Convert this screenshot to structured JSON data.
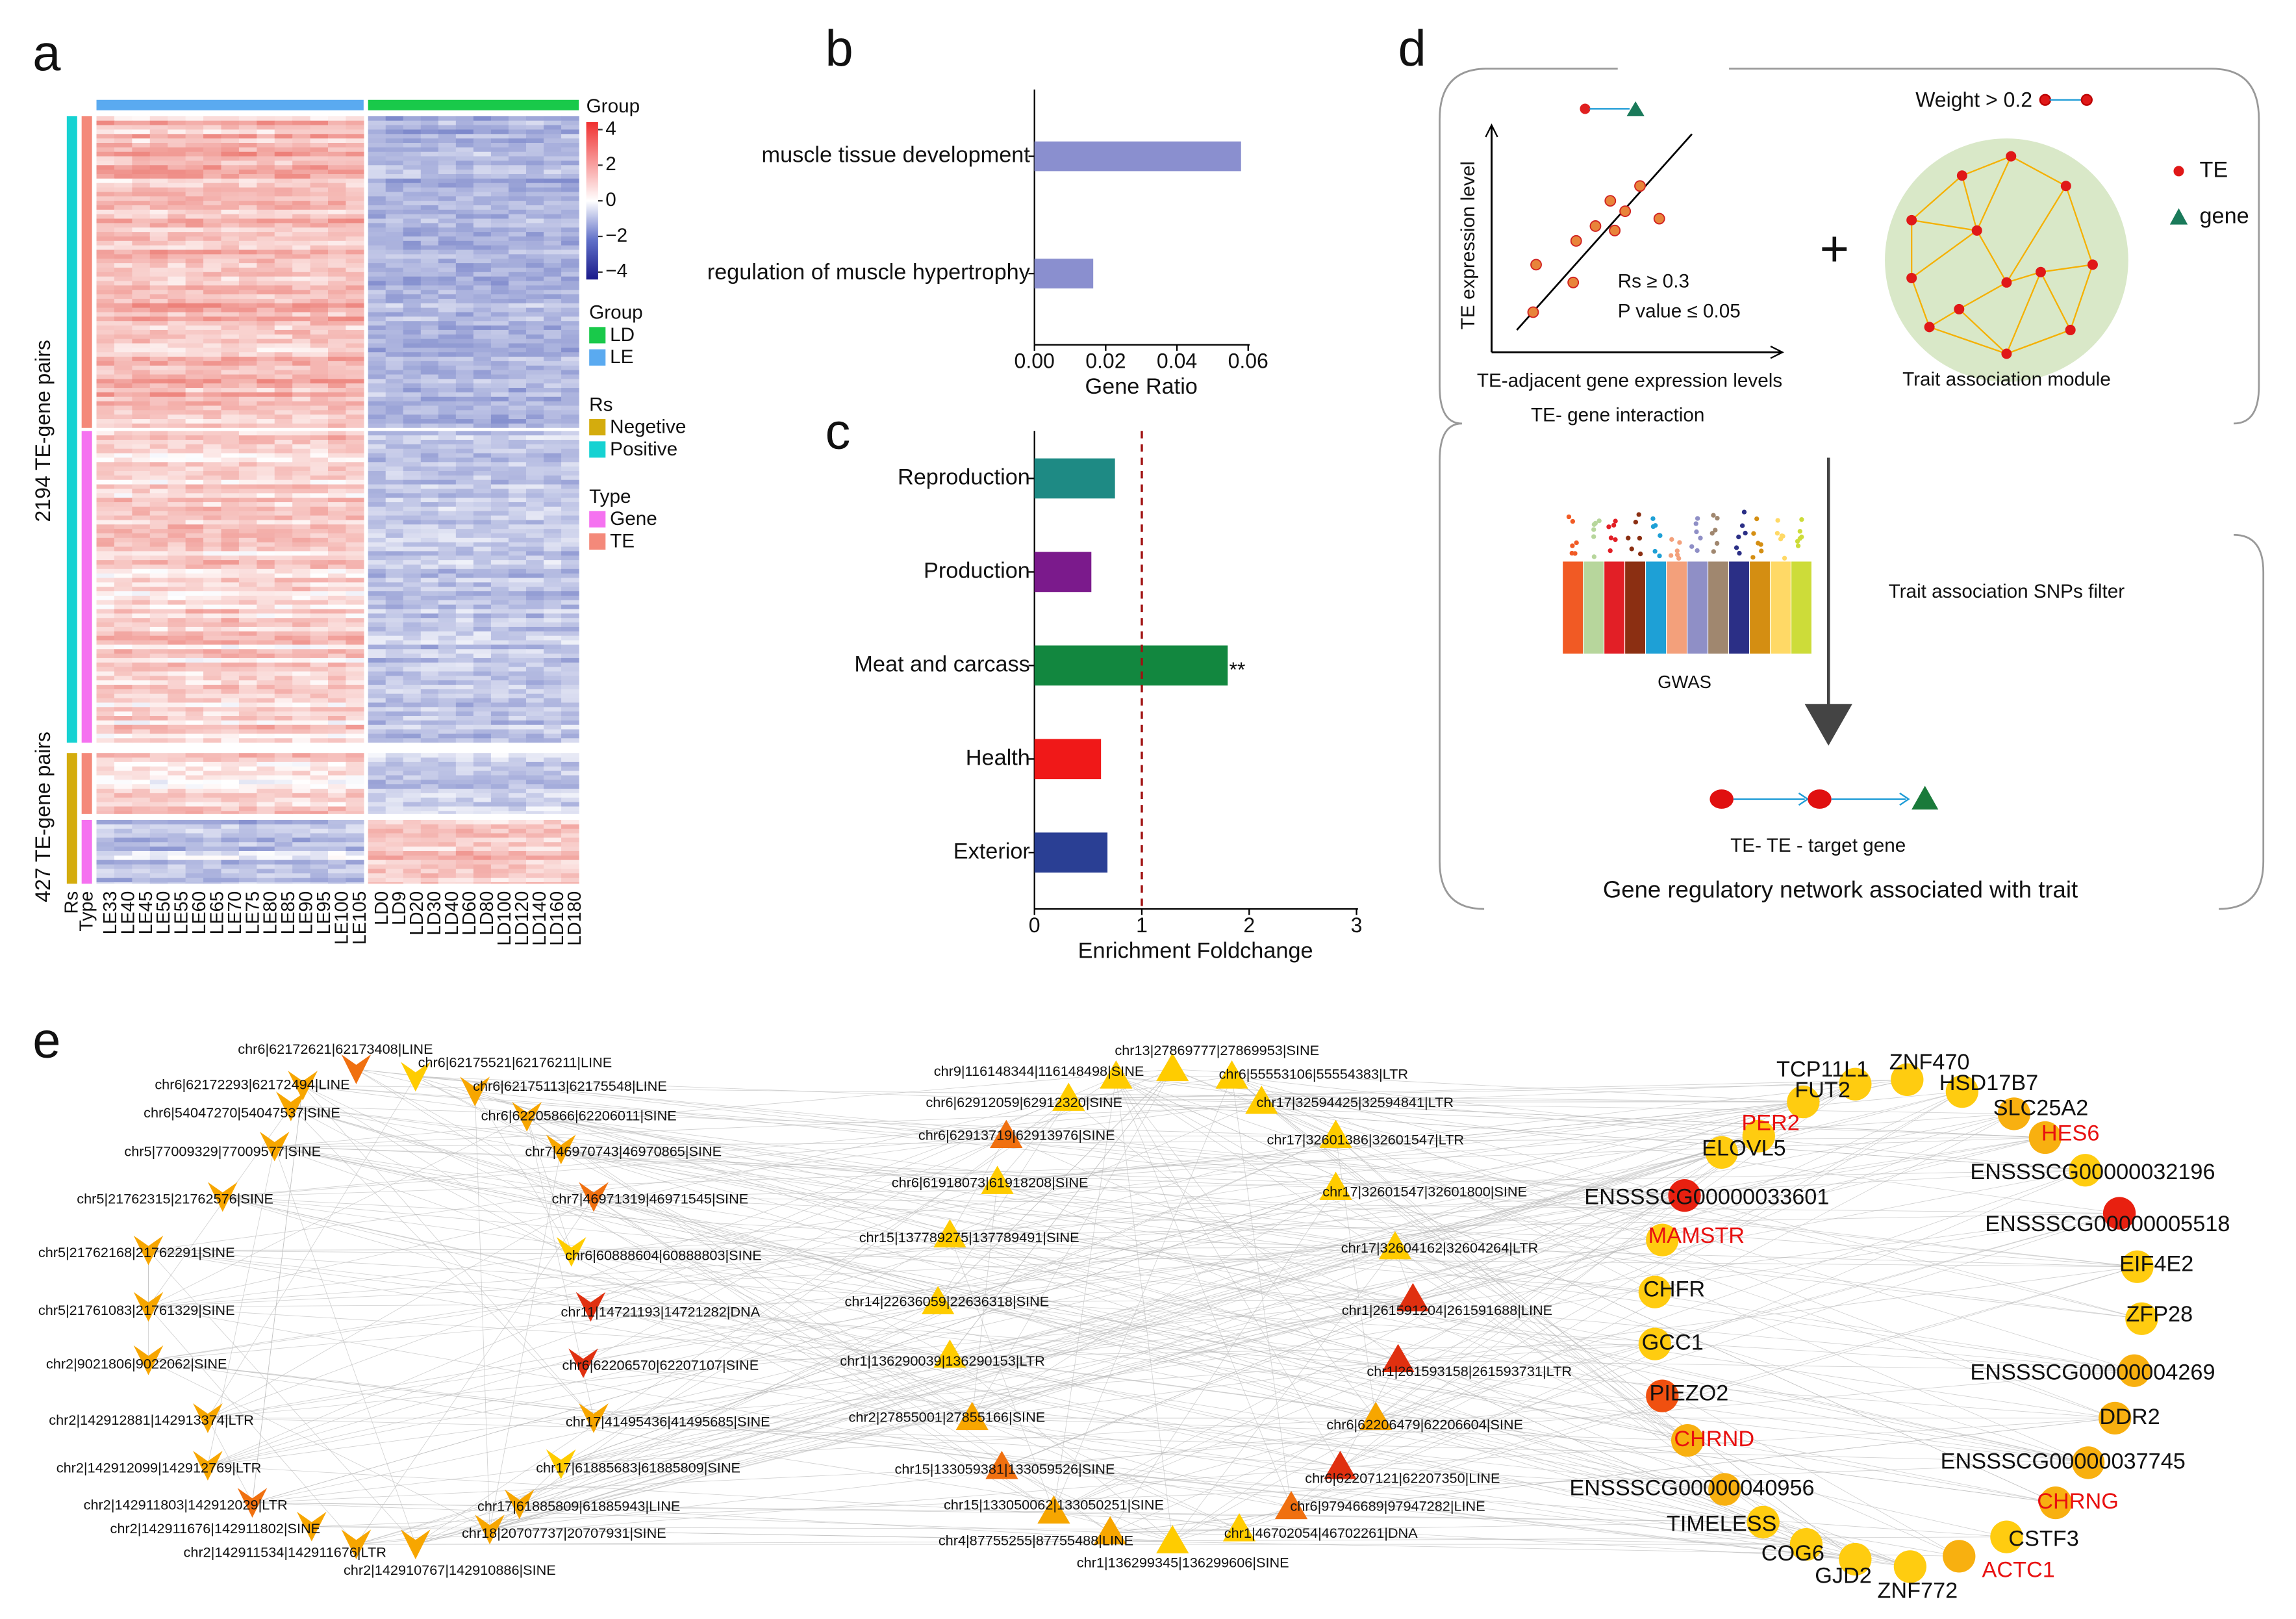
{
  "panels": [
    "a",
    "b",
    "c",
    "d",
    "e"
  ],
  "heatmap": {
    "columns": [
      "LE33",
      "LE40",
      "LE45",
      "LE50",
      "LE55",
      "LE60",
      "LE65",
      "LE70",
      "LE75",
      "LE80",
      "LE85",
      "LE90",
      "LE95",
      "LE100",
      "LE105",
      "LD0",
      "LD9",
      "LD20",
      "LD30",
      "LD40",
      "LD60",
      "LD80",
      "LD100",
      "LD120",
      "LD140",
      "LD160",
      "LD180"
    ],
    "row_groups": [
      "2194 TE-gene pairs",
      "427 TE-gene pairs"
    ],
    "annotation_labels": [
      "Rs",
      "Type"
    ],
    "colorbar": {
      "title": "Group",
      "ticks": [
        4,
        2,
        0,
        {
          "value": -2,
          "label": "−2"
        },
        {
          "value": -4,
          "label": "−4"
        }
      ]
    },
    "legends": [
      {
        "title": "Group",
        "items": [
          {
            "label": "LD",
            "color": "#19c94a"
          },
          {
            "label": "LE",
            "color": "#5aaaf0"
          }
        ]
      },
      {
        "title": "Rs",
        "items": [
          {
            "label": "Negetive",
            "color": "#d4ac0d"
          },
          {
            "label": "Positive",
            "color": "#16d2d2"
          }
        ]
      },
      {
        "title": "Type",
        "items": [
          {
            "label": "Gene",
            "color": "#f572f0"
          },
          {
            "label": "TE",
            "color": "#f4897a"
          }
        ]
      }
    ]
  },
  "chart_data": [
    {
      "type": "bar",
      "orientation": "horizontal",
      "categories": [
        "muscle tissue development",
        "regulation of muscle hypertrophy"
      ],
      "values": [
        0.058,
        0.0165
      ],
      "color": "#8a8fcf",
      "xlabel": "Gene Ratio",
      "xlim": [
        0,
        0.06
      ],
      "xticks": [
        {
          "value": 0,
          "label": "0.00"
        },
        {
          "value": 0.02,
          "label": "0.02"
        },
        {
          "value": 0.04,
          "label": "0.04"
        },
        {
          "value": 0.06,
          "label": "0.06"
        }
      ]
    },
    {
      "type": "bar",
      "orientation": "horizontal",
      "categories": [
        "Reproduction",
        "Production",
        "Meat and carcass",
        "Health",
        "Exterior"
      ],
      "values": [
        0.75,
        0.53,
        1.8,
        0.62,
        0.68
      ],
      "colors": [
        "#1e8a84",
        "#7b1a8c",
        "#12873f",
        "#f01818",
        "#2a3f94"
      ],
      "xlabel": "Enrichment Foldchange",
      "xlim": [
        0,
        3
      ],
      "xticks": [
        0,
        1,
        2,
        3
      ],
      "reference_line": 1,
      "annotations": [
        {
          "category": "Meat and carcass",
          "text": "**"
        }
      ]
    }
  ],
  "diagram": {
    "weight": "Weight > 0.2",
    "legend_te": "TE",
    "legend_gene": "gene",
    "y_axis": "TE expression level",
    "x_axis": "TE-adjacent gene expression levels",
    "interaction": "TE- gene interaction",
    "rs": "Rs ≥ 0.3",
    "pvalue": "P value ≤ 0.05",
    "plus": "+",
    "module": "Trait association module",
    "snp_filter": "Trait association SNPs filter",
    "gwas": "GWAS",
    "chain": "TE- TE - target gene",
    "caption": "Gene regulatory network associated with trait"
  },
  "network": {
    "nodes": [
      "chr6|62172621|62173408|LINE",
      "chr6|62172293|62172494|LINE",
      "chr6|62175521|62176211|LINE",
      "chr6|54047270|54047537|SINE",
      "chr6|62175113|62175548|LINE",
      "chr6|62205866|62206011|SINE",
      "chr5|77009329|77009577|SINE",
      "chr7|46970743|46970865|SINE",
      "chr5|21762315|21762576|SINE",
      "chr7|46971319|46971545|SINE",
      "chr5|21762168|21762291|SINE",
      "chr6|60888604|60888803|SINE",
      "chr5|21761083|21761329|SINE",
      "chr11|14721193|14721282|DNA",
      "chr2|9021806|9022062|SINE",
      "chr6|62206570|62207107|SINE",
      "chr2|142912881|142913374|LTR",
      "chr17|41495436|41495685|SINE",
      "chr2|142912099|142912769|LTR",
      "chr17|61885683|61885809|SINE",
      "chr2|142911803|142912029|LTR",
      "chr17|61885809|61885943|LINE",
      "chr2|142911676|142911802|SINE",
      "chr18|20707737|20707931|SINE",
      "chr2|142911534|142911676|LTR",
      "chr2|142910767|142910886|SINE",
      "chr13|27869777|27869953|SINE",
      "chr9|116148344|116148498|SINE",
      "chr6|55553106|55554383|LTR",
      "chr6|62912059|62912320|SINE",
      "chr17|32594425|32594841|LTR",
      "chr6|62913719|62913976|SINE",
      "chr17|32601386|32601547|LTR",
      "chr6|61918073|61918208|SINE",
      "chr17|32601547|32601800|SINE",
      "chr15|137789275|137789491|SINE",
      "chr17|32604162|32604264|LTR",
      "chr14|22636059|22636318|SINE",
      "chr1|261591204|261591688|LINE",
      "chr1|136290039|136290153|LTR",
      "chr1|261593158|261593731|LTR",
      "chr2|27855001|27855166|SINE",
      "chr6|62206479|62206604|SINE",
      "chr15|133059381|133059526|SINE",
      "chr6|62207121|62207350|LINE",
      "chr15|133050062|133050251|SINE",
      "chr6|97946689|97947282|LINE",
      "chr4|87755255|87755488|LINE",
      "chr1|46702054|46702261|DNA",
      "chr1|136299345|136299606|SINE"
    ],
    "genes": [
      "TCP11L1",
      "ZNF470",
      "FUT2",
      "HSD17B7",
      "PER2",
      "SLC25A2",
      "ELOVL5",
      "HES6",
      "ENSSSCG00000033601",
      "ENSSSCG00000032196",
      "ENSSSCG00000005518",
      "MAMSTR",
      "EIF4E2",
      "CHFR",
      "ZFP28",
      "GCC1",
      "ENSSSCG00000004269",
      "PIEZO2",
      "DDR2",
      "CHRND",
      "ENSSSCG00000037745",
      "ENSSSCG00000040956",
      "CHRNG",
      "TIMELESS",
      "CSTF3",
      "COG6",
      "ACTC1",
      "GJD2",
      "ZNF772"
    ]
  }
}
